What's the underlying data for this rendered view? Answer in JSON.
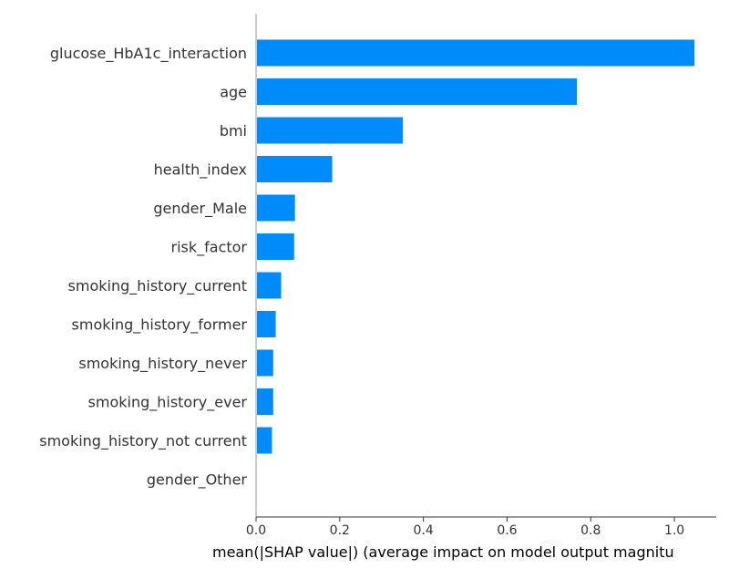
{
  "chart_data": {
    "type": "bar",
    "orientation": "horizontal",
    "categories": [
      "glucose_HbA1c_interaction",
      "age",
      "bmi",
      "health_index",
      "gender_Male",
      "risk_factor",
      "smoking_history_current",
      "smoking_history_former",
      "smoking_history_never",
      "smoking_history_ever",
      "smoking_history_not current",
      "gender_Other"
    ],
    "values": [
      1.048,
      0.767,
      0.351,
      0.182,
      0.093,
      0.091,
      0.06,
      0.047,
      0.041,
      0.041,
      0.038,
      0.0
    ],
    "xlim": [
      0,
      1.1
    ],
    "xticks": [
      "0.0",
      "0.2",
      "0.4",
      "0.6",
      "0.8",
      "1.0"
    ],
    "xlabel": "mean(|SHAP value|) (average impact on model output magnitu",
    "bar_color": "#008bfb",
    "grid": false
  }
}
